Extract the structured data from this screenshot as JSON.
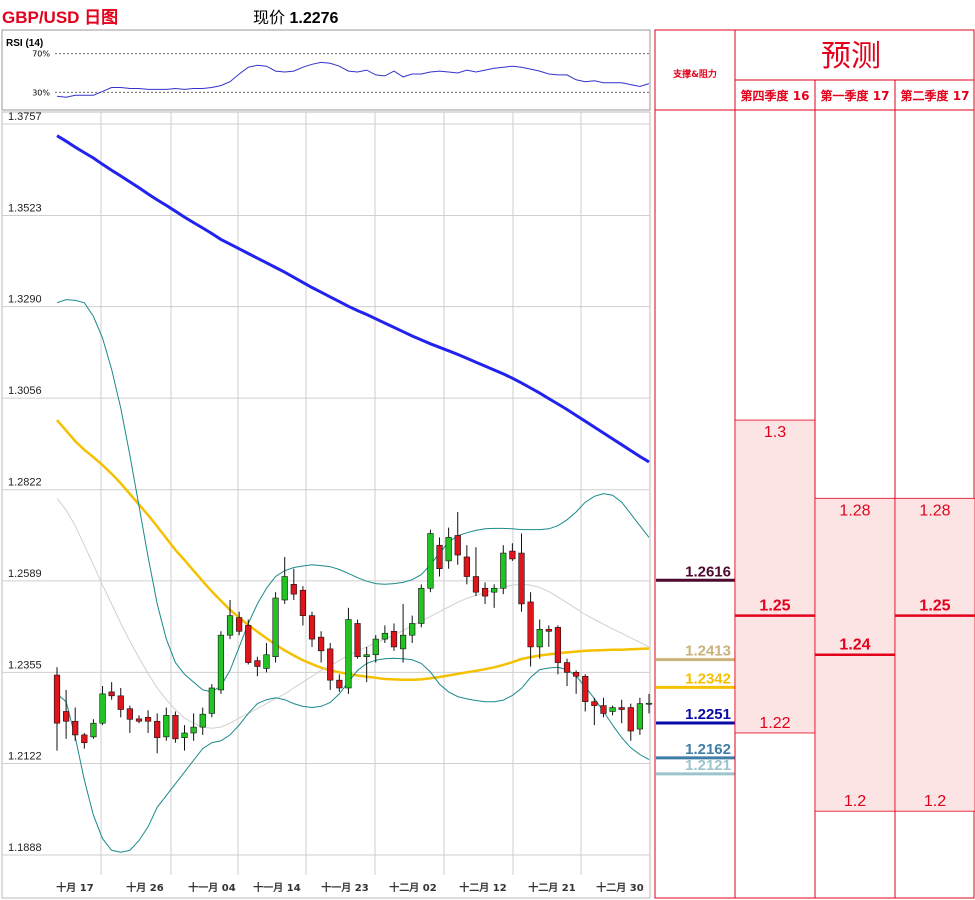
{
  "header": {
    "title": "GBP/USD 日图",
    "price_label": "现价",
    "price_value": "1.2276"
  },
  "rsi": {
    "label": "RSI (14)",
    "levels": [
      "70%",
      "30%"
    ]
  },
  "chart_data": {
    "type": "candlestick",
    "pair": "GBP/USD",
    "yticks": [
      "1.3757",
      "1.3523",
      "1.3290",
      "1.3056",
      "1.2822",
      "1.2589",
      "1.2355",
      "1.2122",
      "1.1888"
    ],
    "ylim": [
      1.1888,
      1.3757
    ],
    "xticks": [
      "十月 17",
      "十月 26",
      "十一月 04",
      "十一月 14",
      "十一月 23",
      "十二月 02",
      "十二月 12",
      "十二月 21",
      "十二月 30"
    ],
    "candles": [
      [
        1.2348,
        1.2368,
        1.2155,
        1.2225
      ],
      [
        1.2255,
        1.231,
        1.2185,
        1.223
      ],
      [
        1.223,
        1.2265,
        1.218,
        1.2195
      ],
      [
        1.2195,
        1.22,
        1.216,
        1.2175
      ],
      [
        1.219,
        1.2235,
        1.2185,
        1.2225
      ],
      [
        1.2225,
        1.232,
        1.222,
        1.23
      ],
      [
        1.2305,
        1.233,
        1.2285,
        1.2295
      ],
      [
        1.2295,
        1.2315,
        1.224,
        1.226
      ],
      [
        1.2262,
        1.227,
        1.22,
        1.2235
      ],
      [
        1.2236,
        1.2245,
        1.2225,
        1.223
      ],
      [
        1.224,
        1.2258,
        1.22,
        1.223
      ],
      [
        1.223,
        1.225,
        1.2148,
        1.2188
      ],
      [
        1.219,
        1.2265,
        1.218,
        1.2245
      ],
      [
        1.2245,
        1.2255,
        1.2175,
        1.2185
      ],
      [
        1.2188,
        1.222,
        1.2155,
        1.22
      ],
      [
        1.22,
        1.225,
        1.218,
        1.2215
      ],
      [
        1.2215,
        1.2265,
        1.2195,
        1.2248
      ],
      [
        1.225,
        1.2325,
        1.224,
        1.2315
      ],
      [
        1.231,
        1.246,
        1.23,
        1.245
      ],
      [
        1.245,
        1.254,
        1.244,
        1.25
      ],
      [
        1.2495,
        1.251,
        1.245,
        1.246
      ],
      [
        1.2475,
        1.249,
        1.2375,
        1.238
      ],
      [
        1.2385,
        1.2395,
        1.2345,
        1.237
      ],
      [
        1.2365,
        1.243,
        1.2355,
        1.24
      ],
      [
        1.2395,
        1.256,
        1.238,
        1.2545
      ],
      [
        1.254,
        1.265,
        1.253,
        1.26
      ],
      [
        1.258,
        1.262,
        1.254,
        1.2555
      ],
      [
        1.2565,
        1.2575,
        1.2475,
        1.25
      ],
      [
        1.25,
        1.251,
        1.242,
        1.244
      ],
      [
        1.2445,
        1.246,
        1.238,
        1.241
      ],
      [
        1.2415,
        1.243,
        1.231,
        1.2335
      ],
      [
        1.2335,
        1.235,
        1.2305,
        1.2315
      ],
      [
        1.2315,
        1.252,
        1.23,
        1.249
      ],
      [
        1.248,
        1.249,
        1.239,
        1.2395
      ],
      [
        1.2395,
        1.242,
        1.233,
        1.24
      ],
      [
        1.24,
        1.245,
        1.238,
        1.244
      ],
      [
        1.244,
        1.2475,
        1.243,
        1.2455
      ],
      [
        1.246,
        1.248,
        1.241,
        1.242
      ],
      [
        1.2415,
        1.253,
        1.238,
        1.245
      ],
      [
        1.245,
        1.25,
        1.243,
        1.248
      ],
      [
        1.248,
        1.258,
        1.247,
        1.257
      ],
      [
        1.257,
        1.272,
        1.256,
        1.271
      ],
      [
        1.268,
        1.27,
        1.26,
        1.262
      ],
      [
        1.264,
        1.2725,
        1.262,
        1.27
      ],
      [
        1.2705,
        1.2765,
        1.263,
        1.2655
      ],
      [
        1.265,
        1.268,
        1.258,
        1.26
      ],
      [
        1.26,
        1.2675,
        1.255,
        1.256
      ],
      [
        1.257,
        1.2585,
        1.253,
        1.255
      ],
      [
        1.256,
        1.258,
        1.252,
        1.257
      ],
      [
        1.257,
        1.268,
        1.2555,
        1.266
      ],
      [
        1.2665,
        1.2685,
        1.264,
        1.2645
      ],
      [
        1.266,
        1.271,
        1.251,
        1.253
      ],
      [
        1.2535,
        1.256,
        1.237,
        1.242
      ],
      [
        1.242,
        1.249,
        1.239,
        1.2465
      ],
      [
        1.2465,
        1.2475,
        1.242,
        1.246
      ],
      [
        1.247,
        1.2475,
        1.235,
        1.238
      ],
      [
        1.238,
        1.239,
        1.232,
        1.2355
      ],
      [
        1.2355,
        1.236,
        1.23,
        1.2345
      ],
      [
        1.2345,
        1.235,
        1.2255,
        1.228
      ],
      [
        1.228,
        1.229,
        1.222,
        1.227
      ],
      [
        1.227,
        1.229,
        1.224,
        1.225
      ],
      [
        1.2255,
        1.227,
        1.2245,
        1.2265
      ],
      [
        1.2265,
        1.2285,
        1.2225,
        1.226
      ],
      [
        1.2265,
        1.2275,
        1.218,
        1.2205
      ],
      [
        1.221,
        1.229,
        1.2195,
        1.2275
      ],
      [
        1.2275,
        1.23,
        1.225,
        1.2276
      ]
    ],
    "series": [
      {
        "name": "ma_blue",
        "color": "#2222ee",
        "values": [
          1.3727,
          1.3713,
          1.3698,
          1.3684,
          1.367,
          1.3654,
          1.3639,
          1.3624,
          1.3609,
          1.3594,
          1.3578,
          1.3563,
          1.3549,
          1.3534,
          1.3519,
          1.3505,
          1.3491,
          1.3477,
          1.3462,
          1.345,
          1.3438,
          1.3426,
          1.3414,
          1.3402,
          1.339,
          1.3378,
          1.3365,
          1.3352,
          1.3339,
          1.3327,
          1.3315,
          1.3303,
          1.3291,
          1.328,
          1.327,
          1.3259,
          1.3248,
          1.3237,
          1.3226,
          1.3215,
          1.3205,
          1.3195,
          1.3186,
          1.3177,
          1.3168,
          1.3158,
          1.3148,
          1.3138,
          1.3128,
          1.3118,
          1.3107,
          1.3095,
          1.3082,
          1.3069,
          1.3055,
          1.3041,
          1.3027,
          1.3012,
          1.2997,
          1.2982,
          1.2967,
          1.2952,
          1.2937,
          1.2922,
          1.2907,
          1.2893
        ]
      },
      {
        "name": "ma_yellow",
        "color": "#f5c000",
        "values": [
          1.3,
          1.2973,
          1.2946,
          1.2924,
          1.2905,
          1.2885,
          1.2863,
          1.2838,
          1.2811,
          1.2784,
          1.2757,
          1.2728,
          1.2698,
          1.2668,
          1.2642,
          1.2615,
          1.2588,
          1.2562,
          1.2538,
          1.2515,
          1.2495,
          1.2476,
          1.2459,
          1.2442,
          1.2426,
          1.2411,
          1.2398,
          1.2386,
          1.2376,
          1.2367,
          1.236,
          1.2355,
          1.2351,
          1.2347,
          1.2344,
          1.2341,
          1.2338,
          1.2337,
          1.2336,
          1.2336,
          1.2337,
          1.234,
          1.2343,
          1.2347,
          1.2351,
          1.2355,
          1.2359,
          1.2363,
          1.2368,
          1.2374,
          1.2381,
          1.2389,
          1.2394,
          1.2398,
          1.2401,
          1.2404,
          1.2406,
          1.2408,
          1.241,
          1.2411,
          1.2412,
          1.2413,
          1.2413,
          1.2414,
          1.2415,
          1.2416
        ]
      },
      {
        "name": "ma_grey",
        "color": "#d0d0d0",
        "values": [
          1.28,
          1.277,
          1.273,
          1.268,
          1.263,
          1.2578,
          1.253,
          1.248,
          1.2435,
          1.2392,
          1.2352,
          1.2315,
          1.2285,
          1.226,
          1.2238,
          1.2225,
          1.2215,
          1.2212,
          1.2215,
          1.2225,
          1.2238,
          1.225,
          1.2262,
          1.2275,
          1.2288,
          1.23,
          1.2315,
          1.233,
          1.2345,
          1.236,
          1.2372,
          1.2385,
          1.2398,
          1.241,
          1.242,
          1.243,
          1.244,
          1.245,
          1.2462,
          1.2474,
          1.2486,
          1.2498,
          1.251,
          1.2522,
          1.2534,
          1.2544,
          1.2552,
          1.2559,
          1.2566,
          1.2572,
          1.2578,
          1.258,
          1.2578,
          1.2572,
          1.2562,
          1.2548,
          1.2533,
          1.2518,
          1.2503,
          1.249,
          1.2478,
          1.2466,
          1.2455,
          1.2443,
          1.2432,
          1.242
        ]
      },
      {
        "name": "bb_upper",
        "color": "#1a8a8a",
        "values": [
          1.33,
          1.3308,
          1.3306,
          1.33,
          1.3265,
          1.321,
          1.313,
          1.303,
          1.291,
          1.278,
          1.265,
          1.253,
          1.244,
          1.238,
          1.235,
          1.233,
          1.231,
          1.2305,
          1.232,
          1.236,
          1.242,
          1.248,
          1.253,
          1.257,
          1.26,
          1.2615,
          1.2623,
          1.2627,
          1.263,
          1.2628,
          1.2625,
          1.2618,
          1.2608,
          1.2597,
          1.2588,
          1.2582,
          1.258,
          1.2582,
          1.2585,
          1.2592,
          1.2605,
          1.263,
          1.266,
          1.2688,
          1.2704,
          1.2712,
          1.2718,
          1.2722,
          1.2723,
          1.2723,
          1.2722,
          1.272,
          1.272,
          1.272,
          1.2722,
          1.273,
          1.2745,
          1.2765,
          1.279,
          1.2805,
          1.2812,
          1.2808,
          1.279,
          1.276,
          1.273,
          1.27
        ]
      },
      {
        "name": "bb_lower",
        "color": "#1a8a8a",
        "values": [
          1.23,
          1.228,
          1.219,
          1.208,
          1.199,
          1.193,
          1.19,
          1.1895,
          1.19,
          1.1925,
          1.196,
          1.201,
          1.204,
          1.207,
          1.21,
          1.213,
          1.216,
          1.2175,
          1.218,
          1.2195,
          1.222,
          1.225,
          1.2275,
          1.2285,
          1.229,
          1.2285,
          1.2275,
          1.2268,
          1.2265,
          1.2268,
          1.2278,
          1.23,
          1.233,
          1.236,
          1.2378,
          1.2386,
          1.239,
          1.2391,
          1.239,
          1.2387,
          1.2378,
          1.2356,
          1.2325,
          1.2305,
          1.2293,
          1.2287,
          1.2283,
          1.228,
          1.228,
          1.2284,
          1.2296,
          1.2314,
          1.2342,
          1.2362,
          1.2366,
          1.2368,
          1.2362,
          1.2346,
          1.2318,
          1.2288,
          1.2255,
          1.222,
          1.2188,
          1.2162,
          1.2145,
          1.2132
        ]
      }
    ],
    "rsi_values": [
      26,
      25,
      27,
      27,
      27,
      31,
      35,
      35,
      34,
      34,
      33,
      33,
      33,
      34,
      33,
      34,
      34,
      35,
      37,
      41,
      49,
      56,
      58,
      57,
      52,
      51,
      52,
      56,
      59,
      61,
      60,
      57,
      52,
      51,
      53,
      48,
      47,
      52,
      46,
      49,
      49,
      51,
      52,
      51,
      50,
      53,
      51,
      53,
      55,
      56,
      57,
      56,
      54,
      52,
      49,
      48,
      48,
      43,
      41,
      42,
      40,
      40,
      40,
      38,
      36,
      39
    ]
  },
  "levels_panel": {
    "header": "支撑&阻力",
    "levels": [
      {
        "value": "1.2616",
        "color": "#4d0a2e",
        "price": 1.2616
      },
      {
        "value": "1.2413",
        "color": "#cbb27a",
        "price": 1.2413
      },
      {
        "value": "1.2342",
        "color": "#f5c000",
        "price": 1.2342
      },
      {
        "value": "1.2251",
        "color": "#0a0aa8",
        "price": 1.2251
      },
      {
        "value": "1.2162",
        "color": "#3f7ea6",
        "price": 1.2162
      },
      {
        "value": "1.2121",
        "color": "#9cc4cc",
        "price": 1.2121
      }
    ]
  },
  "forecast": {
    "title": "预测",
    "columns": [
      {
        "label": "第四季度 16",
        "high": "1.3",
        "mid": "1.25",
        "low": "1.22",
        "hi_p": 1.3,
        "mid_p": 1.25,
        "low_p": 1.22
      },
      {
        "label": "第一季度 17",
        "high": "1.28",
        "mid": "1.24",
        "low": "1.2",
        "hi_p": 1.28,
        "mid_p": 1.24,
        "low_p": 1.2
      },
      {
        "label": "第二季度 17",
        "high": "1.28",
        "mid": "1.25",
        "low": "1.2",
        "hi_p": 1.28,
        "mid_p": 1.25,
        "low_p": 1.2
      }
    ]
  }
}
